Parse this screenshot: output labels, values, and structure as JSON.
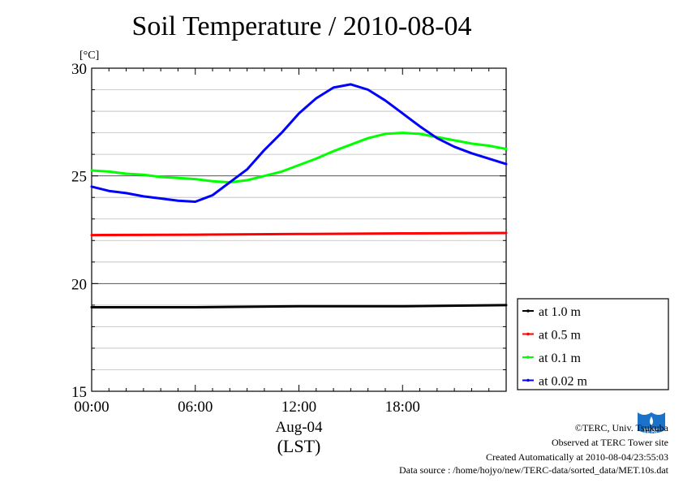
{
  "title": "Soil Temperature / 2010-08-04",
  "chart_data": {
    "type": "line",
    "title": "Soil Temperature / 2010-08-04",
    "ylabel": "[°C]",
    "xlabel_date": "Aug-04",
    "xlabel_tz": "(LST)",
    "ylim": [
      15,
      30
    ],
    "xlim_hours": [
      0,
      24
    ],
    "yticks": [
      15,
      20,
      25,
      30
    ],
    "xtick_hours": [
      0,
      6,
      12,
      18
    ],
    "xtick_labels": [
      "00:00",
      "06:00",
      "12:00",
      "18:00"
    ],
    "grid": true,
    "legend_position": "right-bottom",
    "series": [
      {
        "name": "at 1.0 m",
        "color": "#000000",
        "x": [
          0,
          6,
          12,
          18,
          24
        ],
        "y": [
          18.9,
          18.9,
          18.95,
          18.95,
          19.0
        ]
      },
      {
        "name": "at 0.5 m",
        "color": "#ff0000",
        "x": [
          0,
          6,
          12,
          18,
          24
        ],
        "y": [
          22.25,
          22.27,
          22.3,
          22.33,
          22.35
        ]
      },
      {
        "name": "at 0.1 m",
        "color": "#00ff00",
        "x": [
          0,
          1,
          2,
          3,
          4,
          5,
          6,
          7,
          8,
          9,
          10,
          11,
          12,
          13,
          14,
          15,
          16,
          17,
          18,
          19,
          20,
          21,
          22,
          23,
          24
        ],
        "y": [
          25.25,
          25.2,
          25.1,
          25.05,
          24.95,
          24.9,
          24.85,
          24.75,
          24.7,
          24.8,
          25.0,
          25.2,
          25.5,
          25.8,
          26.15,
          26.45,
          26.75,
          26.95,
          27.0,
          26.95,
          26.8,
          26.65,
          26.5,
          26.4,
          26.25
        ]
      },
      {
        "name": "at 0.02 m",
        "color": "#0000ff",
        "x": [
          0,
          1,
          2,
          3,
          4,
          5,
          6,
          7,
          8,
          9,
          10,
          11,
          12,
          13,
          14,
          15,
          16,
          17,
          18,
          19,
          20,
          21,
          22,
          23,
          24
        ],
        "y": [
          24.5,
          24.3,
          24.2,
          24.05,
          23.95,
          23.85,
          23.8,
          24.1,
          24.7,
          25.3,
          26.2,
          27.0,
          27.9,
          28.6,
          29.1,
          29.25,
          29.0,
          28.5,
          27.9,
          27.3,
          26.75,
          26.35,
          26.05,
          25.8,
          25.55
        ]
      }
    ]
  },
  "footer": {
    "copyright": "©TERC, Univ. Tsukuba",
    "observed": "Observed at TERC Tower site",
    "created": "Created Automatically at 2010-08-04/23:55:03",
    "source": "Data source : /home/hojyo/new/TERC-data/sorted_data/MET.10s.dat",
    "logo_text": "TERC"
  },
  "colors": {
    "logo": "#1a73c9"
  }
}
